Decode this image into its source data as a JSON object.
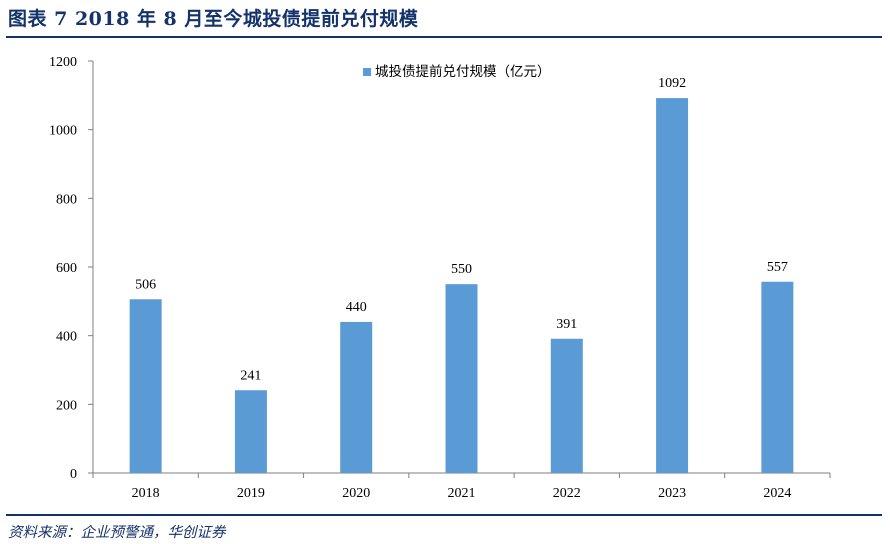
{
  "header": {
    "title": "图表 7   2018 年 8 月至今城投债提前兑付规模"
  },
  "footer": {
    "source": "资料来源：企业预警通，华创证券"
  },
  "colors": {
    "bar": "#5b9bd5",
    "title": "#14336b",
    "axis": "#7f7f7f"
  },
  "chart_data": {
    "type": "bar",
    "categories": [
      "2018",
      "2019",
      "2020",
      "2021",
      "2022",
      "2023",
      "2024"
    ],
    "series": [
      {
        "name": "城投债提前兑付规模（亿元）",
        "values": [
          506,
          241,
          440,
          550,
          391,
          1092,
          557
        ]
      }
    ],
    "ylim": [
      0,
      1200
    ],
    "yticks": [
      0,
      200,
      400,
      600,
      800,
      1000,
      1200
    ],
    "data_labels": true,
    "grid": false,
    "legend_position": "top-center"
  }
}
